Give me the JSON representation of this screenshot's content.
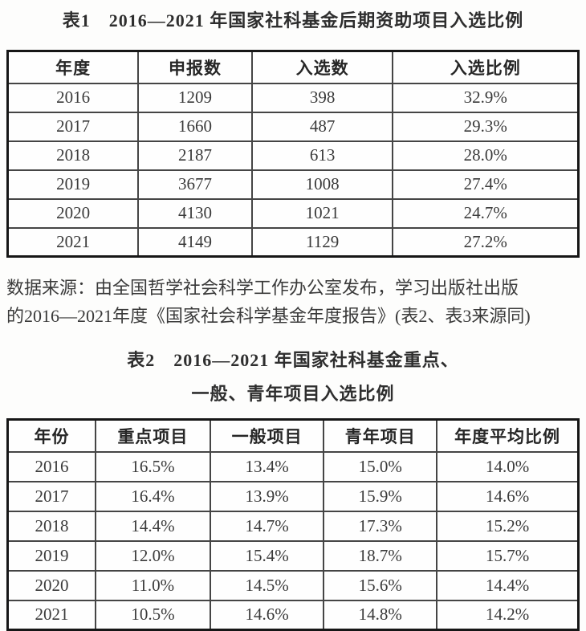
{
  "document": {
    "table1": {
      "title": "表1　2016—2021 年国家社科基金后期资助项目入选比例",
      "headers": [
        "年度",
        "申报数",
        "入选数",
        "入选比例"
      ],
      "rows": [
        [
          "2016",
          "1209",
          "398",
          "32.9%"
        ],
        [
          "2017",
          "1660",
          "487",
          "29.3%"
        ],
        [
          "2018",
          "2187",
          "613",
          "28.0%"
        ],
        [
          "2019",
          "3677",
          "1008",
          "27.4%"
        ],
        [
          "2020",
          "4130",
          "1021",
          "24.7%"
        ],
        [
          "2021",
          "4149",
          "1129",
          "27.2%"
        ]
      ]
    },
    "source_note": {
      "line1": "数据来源：由全国哲学社会科学工作办公室发布，学习出版社出版",
      "line2": "的2016—2021年度《国家社会科学基金年度报告》(表2、表3来源同)"
    },
    "table2": {
      "title_line1": "表2　2016—2021 年国家社科基金重点、",
      "title_line2": "一般、青年项目入选比例",
      "headers": [
        "年份",
        "重点项目",
        "一般项目",
        "青年项目",
        "年度平均比例"
      ],
      "rows": [
        [
          "2016",
          "16.5%",
          "13.4%",
          "15.0%",
          "14.0%"
        ],
        [
          "2017",
          "16.4%",
          "13.9%",
          "15.9%",
          "14.6%"
        ],
        [
          "2018",
          "14.4%",
          "14.7%",
          "17.3%",
          "15.2%"
        ],
        [
          "2019",
          "12.0%",
          "15.4%",
          "18.7%",
          "15.7%"
        ],
        [
          "2020",
          "11.0%",
          "14.5%",
          "15.6%",
          "14.4%"
        ],
        [
          "2021",
          "10.5%",
          "14.6%",
          "14.8%",
          "14.2%"
        ]
      ]
    },
    "colors": {
      "background": "#fdfdfc",
      "text": "#3a3a3a",
      "border_outer": "#161616",
      "border_inner": "#454545"
    }
  },
  "chart_data": [
    {
      "type": "table",
      "title": "表1 2016—2021 年国家社科基金后期资助项目入选比例",
      "columns": [
        "年度",
        "申报数",
        "入选数",
        "入选比例"
      ],
      "rows": [
        [
          "2016",
          1209,
          398,
          "32.9%"
        ],
        [
          "2017",
          1660,
          487,
          "29.3%"
        ],
        [
          "2018",
          2187,
          613,
          "28.0%"
        ],
        [
          "2019",
          3677,
          1008,
          "27.4%"
        ],
        [
          "2020",
          4130,
          1021,
          "24.7%"
        ],
        [
          "2021",
          4149,
          1129,
          "27.2%"
        ]
      ]
    },
    {
      "type": "table",
      "title": "表2 2016—2021 年国家社科基金重点、一般、青年项目入选比例",
      "columns": [
        "年份",
        "重点项目",
        "一般项目",
        "青年项目",
        "年度平均比例"
      ],
      "rows": [
        [
          "2016",
          "16.5%",
          "13.4%",
          "15.0%",
          "14.0%"
        ],
        [
          "2017",
          "16.4%",
          "13.9%",
          "15.9%",
          "14.6%"
        ],
        [
          "2018",
          "14.4%",
          "14.7%",
          "17.3%",
          "15.2%"
        ],
        [
          "2019",
          "12.0%",
          "15.4%",
          "18.7%",
          "15.7%"
        ],
        [
          "2020",
          "11.0%",
          "14.5%",
          "15.6%",
          "14.4%"
        ],
        [
          "2021",
          "10.5%",
          "14.6%",
          "14.8%",
          "14.2%"
        ]
      ]
    }
  ]
}
